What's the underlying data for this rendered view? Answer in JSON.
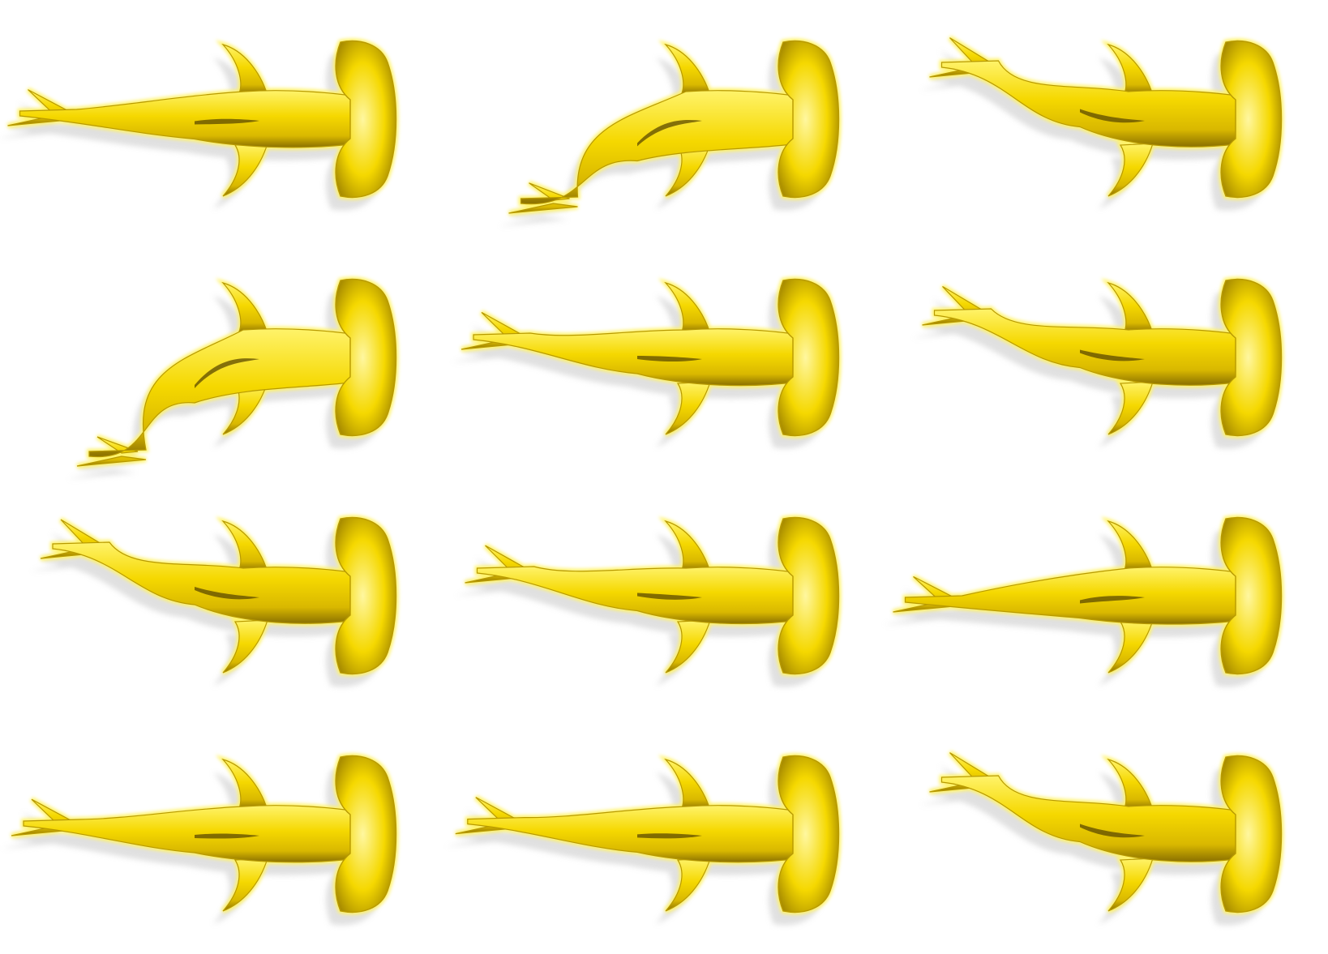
{
  "sprite_sheet": {
    "subject": "hammerhead-shark",
    "view": "top-down",
    "rows": 4,
    "columns": 3,
    "colors": {
      "background": "#ffffff",
      "body_light": "#fff36a",
      "body_mid": "#f5d800",
      "body_dark": "#b89a00",
      "body_shade": "#5c4a00",
      "shadow": "#c8c8c8"
    },
    "frames": [
      {
        "tail_bend": 0.05
      },
      {
        "tail_bend": -0.85
      },
      {
        "tail_bend": 0.55
      },
      {
        "tail_bend": -1.0
      },
      {
        "tail_bend": 0.2
      },
      {
        "tail_bend": 0.45
      },
      {
        "tail_bend": 0.5
      },
      {
        "tail_bend": 0.25
      },
      {
        "tail_bend": -0.05
      },
      {
        "tail_bend": 0.1
      },
      {
        "tail_bend": 0.12
      },
      {
        "tail_bend": 0.55
      }
    ]
  }
}
